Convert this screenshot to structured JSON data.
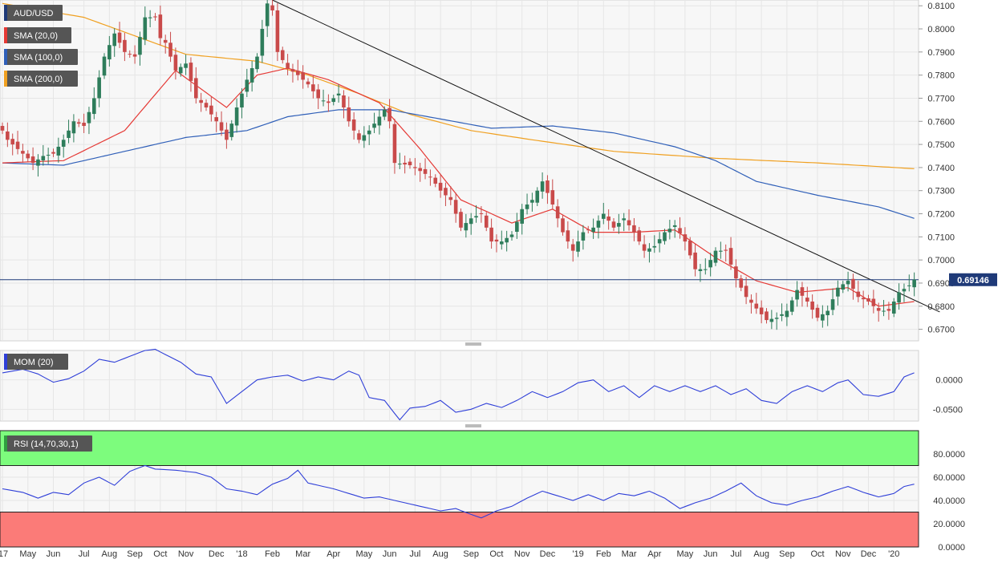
{
  "chart_data": [
    {
      "type": "candlestick",
      "title": "AUD/USD",
      "ylim": [
        0.665,
        0.8125
      ],
      "y_ticks": [
        "0.8100",
        "0.8000",
        "0.7900",
        "0.7800",
        "0.7700",
        "0.7600",
        "0.7500",
        "0.7400",
        "0.7300",
        "0.7200",
        "0.7100",
        "0.7000",
        "0.6900",
        "0.6800",
        "0.6700"
      ],
      "x_ticks": [
        "'17",
        "May",
        "Jun",
        "Jul",
        "Aug",
        "Sep",
        "Oct",
        "Nov",
        "Dec",
        "'18",
        "Feb",
        "Mar",
        "Apr",
        "May",
        "Jun",
        "Jul",
        "Aug",
        "Sep",
        "Oct",
        "Nov",
        "Dec",
        "'19",
        "Feb",
        "Mar",
        "Apr",
        "May",
        "Jun",
        "Jul",
        "Aug",
        "Sep",
        "Oct",
        "Nov",
        "Dec",
        "'20"
      ],
      "last_price": "0.69146",
      "grid": true,
      "indicators": [
        {
          "name": "SMA (20,0)",
          "color": "#e53935"
        },
        {
          "name": "SMA (100,0)",
          "color": "#2f5fb8"
        },
        {
          "name": "SMA (200,0)",
          "color": "#f0a020"
        }
      ],
      "candles_close_anchors": [
        [
          0,
          0.756
        ],
        [
          1,
          0.752
        ],
        [
          3,
          0.748
        ],
        [
          5,
          0.744
        ],
        [
          6,
          0.742
        ],
        [
          8,
          0.745
        ],
        [
          10,
          0.746
        ],
        [
          12,
          0.752
        ],
        [
          14,
          0.76
        ],
        [
          16,
          0.758
        ],
        [
          18,
          0.77
        ],
        [
          20,
          0.788
        ],
        [
          21,
          0.793
        ],
        [
          22,
          0.798
        ],
        [
          24,
          0.79
        ],
        [
          26,
          0.788
        ],
        [
          28,
          0.805
        ],
        [
          30,
          0.805
        ],
        [
          31,
          0.796
        ],
        [
          32,
          0.794
        ],
        [
          34,
          0.782
        ],
        [
          36,
          0.785
        ],
        [
          38,
          0.77
        ],
        [
          40,
          0.766
        ],
        [
          42,
          0.76
        ],
        [
          44,
          0.752
        ],
        [
          46,
          0.766
        ],
        [
          48,
          0.778
        ],
        [
          50,
          0.788
        ],
        [
          51,
          0.8
        ],
        [
          52,
          0.811
        ],
        [
          53,
          0.808
        ],
        [
          54,
          0.79
        ],
        [
          56,
          0.783
        ],
        [
          58,
          0.78
        ],
        [
          60,
          0.776
        ],
        [
          62,
          0.77
        ],
        [
          64,
          0.768
        ],
        [
          66,
          0.772
        ],
        [
          68,
          0.76
        ],
        [
          70,
          0.752
        ],
        [
          72,
          0.756
        ],
        [
          74,
          0.762
        ],
        [
          75,
          0.765
        ],
        [
          76,
          0.76
        ],
        [
          77,
          0.742
        ],
        [
          80,
          0.741
        ],
        [
          84,
          0.736
        ],
        [
          86,
          0.73
        ],
        [
          88,
          0.726
        ],
        [
          90,
          0.714
        ],
        [
          92,
          0.718
        ],
        [
          94,
          0.72
        ],
        [
          96,
          0.708
        ],
        [
          98,
          0.708
        ],
        [
          100,
          0.711
        ],
        [
          102,
          0.722
        ],
        [
          104,
          0.726
        ],
        [
          106,
          0.734
        ],
        [
          108,
          0.724
        ],
        [
          110,
          0.712
        ],
        [
          112,
          0.704
        ],
        [
          114,
          0.712
        ],
        [
          116,
          0.714
        ],
        [
          118,
          0.72
        ],
        [
          120,
          0.714
        ],
        [
          122,
          0.718
        ],
        [
          124,
          0.712
        ],
        [
          126,
          0.704
        ],
        [
          128,
          0.706
        ],
        [
          130,
          0.712
        ],
        [
          132,
          0.715
        ],
        [
          134,
          0.708
        ],
        [
          136,
          0.696
        ],
        [
          138,
          0.696
        ],
        [
          140,
          0.704
        ],
        [
          142,
          0.704
        ],
        [
          144,
          0.692
        ],
        [
          146,
          0.684
        ],
        [
          148,
          0.679
        ],
        [
          150,
          0.674
        ],
        [
          152,
          0.675
        ],
        [
          154,
          0.678
        ],
        [
          156,
          0.687
        ],
        [
          158,
          0.682
        ],
        [
          160,
          0.675
        ],
        [
          162,
          0.678
        ],
        [
          164,
          0.688
        ],
        [
          166,
          0.691
        ],
        [
          168,
          0.684
        ],
        [
          170,
          0.682
        ],
        [
          172,
          0.678
        ],
        [
          174,
          0.678
        ],
        [
          176,
          0.686
        ],
        [
          178,
          0.689
        ],
        [
          179,
          0.6915
        ]
      ],
      "sma20_anchors": [
        [
          0,
          0.742
        ],
        [
          12,
          0.743
        ],
        [
          24,
          0.756
        ],
        [
          34,
          0.782
        ],
        [
          44,
          0.766
        ],
        [
          50,
          0.78
        ],
        [
          56,
          0.783
        ],
        [
          64,
          0.778
        ],
        [
          74,
          0.768
        ],
        [
          82,
          0.748
        ],
        [
          90,
          0.726
        ],
        [
          100,
          0.716
        ],
        [
          108,
          0.722
        ],
        [
          116,
          0.712
        ],
        [
          124,
          0.712
        ],
        [
          132,
          0.713
        ],
        [
          140,
          0.701
        ],
        [
          148,
          0.691
        ],
        [
          156,
          0.686
        ],
        [
          166,
          0.688
        ],
        [
          172,
          0.68
        ],
        [
          179,
          0.682
        ]
      ],
      "sma100_anchors": [
        [
          0,
          0.742
        ],
        [
          12,
          0.741
        ],
        [
          24,
          0.747
        ],
        [
          36,
          0.753
        ],
        [
          48,
          0.756
        ],
        [
          56,
          0.762
        ],
        [
          66,
          0.765
        ],
        [
          76,
          0.765
        ],
        [
          86,
          0.761
        ],
        [
          96,
          0.757
        ],
        [
          108,
          0.758
        ],
        [
          120,
          0.755
        ],
        [
          132,
          0.749
        ],
        [
          140,
          0.743
        ],
        [
          148,
          0.734
        ],
        [
          160,
          0.728
        ],
        [
          172,
          0.723
        ],
        [
          179,
          0.718
        ]
      ],
      "sma200_anchors": [
        [
          0,
          0.811
        ],
        [
          16,
          0.805
        ],
        [
          36,
          0.789
        ],
        [
          50,
          0.786
        ],
        [
          60,
          0.78
        ],
        [
          70,
          0.772
        ],
        [
          80,
          0.763
        ],
        [
          92,
          0.756
        ],
        [
          104,
          0.752
        ],
        [
          120,
          0.747
        ],
        [
          140,
          0.744
        ],
        [
          160,
          0.742
        ],
        [
          179,
          0.7395
        ]
      ],
      "trendline": {
        "from": [
          53,
          0.8125
        ],
        "to": [
          184,
          0.6775
        ]
      }
    },
    {
      "type": "line",
      "title": "MOM (20)",
      "ylim": [
        -0.07,
        0.05
      ],
      "y_ticks": [
        "0.0000",
        "-0.0500"
      ],
      "series_anchors": [
        [
          0,
          0.012
        ],
        [
          4,
          0.018
        ],
        [
          7,
          0.01
        ],
        [
          10,
          -0.004
        ],
        [
          13,
          0.002
        ],
        [
          16,
          0.015
        ],
        [
          19,
          0.035
        ],
        [
          22,
          0.03
        ],
        [
          25,
          0.04
        ],
        [
          28,
          0.05
        ],
        [
          30,
          0.052
        ],
        [
          32,
          0.043
        ],
        [
          35,
          0.03
        ],
        [
          38,
          0.01
        ],
        [
          41,
          0.005
        ],
        [
          44,
          -0.04
        ],
        [
          47,
          -0.02
        ],
        [
          50,
          0.0
        ],
        [
          53,
          0.005
        ],
        [
          56,
          0.008
        ],
        [
          59,
          -0.002
        ],
        [
          62,
          0.005
        ],
        [
          65,
          0.0
        ],
        [
          68,
          0.015
        ],
        [
          70,
          0.008
        ],
        [
          72,
          -0.03
        ],
        [
          75,
          -0.035
        ],
        [
          78,
          -0.068
        ],
        [
          80,
          -0.048
        ],
        [
          83,
          -0.045
        ],
        [
          86,
          -0.035
        ],
        [
          89,
          -0.055
        ],
        [
          92,
          -0.05
        ],
        [
          95,
          -0.04
        ],
        [
          98,
          -0.047
        ],
        [
          101,
          -0.035
        ],
        [
          104,
          -0.02
        ],
        [
          107,
          -0.03
        ],
        [
          110,
          -0.02
        ],
        [
          113,
          -0.005
        ],
        [
          116,
          0.0
        ],
        [
          119,
          -0.02
        ],
        [
          122,
          -0.01
        ],
        [
          125,
          -0.03
        ],
        [
          128,
          -0.01
        ],
        [
          131,
          -0.02
        ],
        [
          134,
          -0.01
        ],
        [
          137,
          -0.02
        ],
        [
          140,
          -0.01
        ],
        [
          143,
          -0.025
        ],
        [
          146,
          -0.015
        ],
        [
          149,
          -0.035
        ],
        [
          152,
          -0.04
        ],
        [
          155,
          -0.02
        ],
        [
          158,
          -0.01
        ],
        [
          161,
          -0.02
        ],
        [
          164,
          -0.005
        ],
        [
          166,
          0.0
        ],
        [
          169,
          -0.025
        ],
        [
          172,
          -0.028
        ],
        [
          175,
          -0.02
        ],
        [
          177,
          0.005
        ],
        [
          179,
          0.012
        ]
      ]
    },
    {
      "type": "line",
      "title": "RSI (14,70,30,1)",
      "ylim": [
        0,
        100
      ],
      "y_ticks": [
        "80.0000",
        "60.0000",
        "40.0000",
        "20.0000",
        "0.0000"
      ],
      "overbought": 70,
      "oversold": 30,
      "series_anchors": [
        [
          0,
          50
        ],
        [
          4,
          47
        ],
        [
          7,
          42
        ],
        [
          10,
          47
        ],
        [
          13,
          45
        ],
        [
          16,
          55
        ],
        [
          19,
          60
        ],
        [
          22,
          53
        ],
        [
          25,
          65
        ],
        [
          28,
          70
        ],
        [
          30,
          67
        ],
        [
          34,
          66
        ],
        [
          38,
          64
        ],
        [
          41,
          60
        ],
        [
          44,
          50
        ],
        [
          47,
          48
        ],
        [
          50,
          45
        ],
        [
          53,
          54
        ],
        [
          56,
          59
        ],
        [
          58,
          66
        ],
        [
          60,
          55
        ],
        [
          62,
          53
        ],
        [
          65,
          50
        ],
        [
          68,
          46
        ],
        [
          71,
          42
        ],
        [
          74,
          43
        ],
        [
          77,
          40
        ],
        [
          80,
          37
        ],
        [
          83,
          34
        ],
        [
          86,
          31
        ],
        [
          89,
          33
        ],
        [
          92,
          28
        ],
        [
          94,
          25
        ],
        [
          97,
          31
        ],
        [
          100,
          35
        ],
        [
          103,
          42
        ],
        [
          106,
          48
        ],
        [
          109,
          44
        ],
        [
          112,
          40
        ],
        [
          115,
          45
        ],
        [
          118,
          40
        ],
        [
          121,
          46
        ],
        [
          124,
          44
        ],
        [
          127,
          48
        ],
        [
          130,
          42
        ],
        [
          133,
          33
        ],
        [
          136,
          38
        ],
        [
          139,
          42
        ],
        [
          142,
          48
        ],
        [
          145,
          55
        ],
        [
          148,
          44
        ],
        [
          151,
          38
        ],
        [
          154,
          36
        ],
        [
          157,
          40
        ],
        [
          160,
          43
        ],
        [
          163,
          48
        ],
        [
          166,
          52
        ],
        [
          169,
          47
        ],
        [
          172,
          43
        ],
        [
          175,
          46
        ],
        [
          177,
          52
        ],
        [
          179,
          54
        ]
      ]
    }
  ],
  "handles": {
    "drag_icon": "resize-handle-icon"
  }
}
